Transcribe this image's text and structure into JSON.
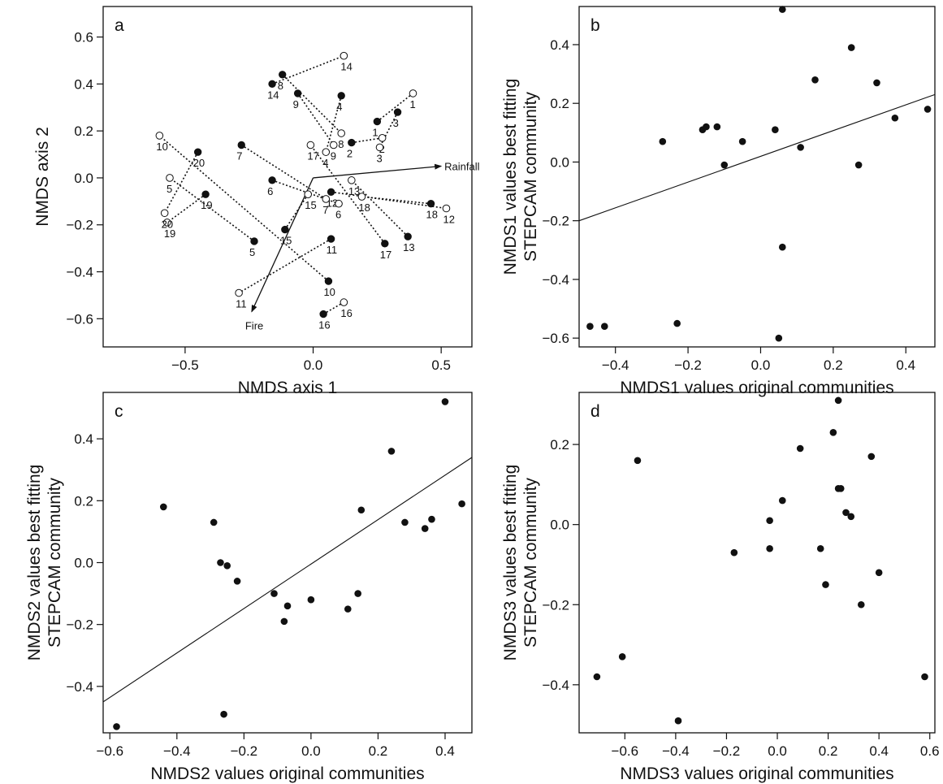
{
  "chart_data": [
    {
      "id": "a",
      "type": "scatter",
      "panel_label": "a",
      "xlabel": "NMDS axis 1",
      "ylabel": "NMDS axis 2",
      "xlim": [
        -0.82,
        0.62
      ],
      "ylim": [
        -0.72,
        0.73
      ],
      "xticks": [
        -0.5,
        0.0,
        0.5
      ],
      "xtick_labels": [
        "−0.5",
        "0.0",
        "0.5"
      ],
      "yticks": [
        -0.6,
        -0.4,
        -0.2,
        0.0,
        0.2,
        0.4,
        0.6
      ],
      "ytick_labels": [
        "−0.6",
        "−0.4",
        "−0.2",
        "0.0",
        "0.2",
        "0.4",
        "0.6"
      ],
      "grid": false,
      "series": [
        {
          "marker": "filled",
          "points": [
            {
              "label": "1",
              "x": 0.25,
              "y": 0.24
            },
            {
              "label": "2",
              "x": 0.15,
              "y": 0.15
            },
            {
              "label": "3",
              "x": 0.33,
              "y": 0.28
            },
            {
              "label": "4",
              "x": 0.11,
              "y": 0.35
            },
            {
              "label": "5",
              "x": -0.23,
              "y": -0.27
            },
            {
              "label": "6",
              "x": -0.16,
              "y": -0.01
            },
            {
              "label": "7",
              "x": -0.28,
              "y": 0.14
            },
            {
              "label": "8",
              "x": -0.12,
              "y": 0.44
            },
            {
              "label": "9",
              "x": -0.06,
              "y": 0.36
            },
            {
              "label": "10",
              "x": 0.06,
              "y": -0.44
            },
            {
              "label": "11",
              "x": 0.07,
              "y": -0.26
            },
            {
              "label": "12",
              "x": 0.07,
              "y": -0.06
            },
            {
              "label": "13",
              "x": 0.37,
              "y": -0.25
            },
            {
              "label": "14",
              "x": -0.16,
              "y": 0.4
            },
            {
              "label": "15",
              "x": -0.11,
              "y": -0.22
            },
            {
              "label": "16",
              "x": 0.04,
              "y": -0.58
            },
            {
              "label": "17",
              "x": 0.28,
              "y": -0.28
            },
            {
              "label": "18",
              "x": 0.46,
              "y": -0.11
            },
            {
              "label": "19",
              "x": -0.42,
              "y": -0.07
            },
            {
              "label": "20",
              "x": -0.45,
              "y": 0.11
            }
          ]
        },
        {
          "marker": "open",
          "points": [
            {
              "label": "1",
              "x": 0.39,
              "y": 0.36
            },
            {
              "label": "2",
              "x": 0.27,
              "y": 0.17
            },
            {
              "label": "3",
              "x": 0.26,
              "y": 0.13
            },
            {
              "label": "4",
              "x": 0.05,
              "y": 0.11
            },
            {
              "label": "5",
              "x": -0.56,
              "y": 0.0
            },
            {
              "label": "6",
              "x": 0.1,
              "y": -0.11
            },
            {
              "label": "7",
              "x": 0.05,
              "y": -0.09
            },
            {
              "label": "8",
              "x": 0.11,
              "y": 0.19
            },
            {
              "label": "9",
              "x": 0.08,
              "y": 0.14
            },
            {
              "label": "10",
              "x": -0.6,
              "y": 0.18
            },
            {
              "label": "11",
              "x": -0.29,
              "y": -0.49
            },
            {
              "label": "12",
              "x": 0.52,
              "y": -0.13
            },
            {
              "label": "13",
              "x": 0.15,
              "y": -0.01
            },
            {
              "label": "14",
              "x": 0.12,
              "y": 0.52
            },
            {
              "label": "15",
              "x": -0.02,
              "y": -0.07
            },
            {
              "label": "16",
              "x": 0.12,
              "y": -0.53
            },
            {
              "label": "17",
              "x": -0.01,
              "y": 0.14
            },
            {
              "label": "18",
              "x": 0.19,
              "y": -0.08
            },
            {
              "label": "19",
              "x": -0.57,
              "y": -0.19
            },
            {
              "label": "20",
              "x": -0.58,
              "y": -0.15
            }
          ]
        }
      ],
      "vectors": [
        {
          "label": "Rainfall",
          "x": 0.5,
          "y": 0.05
        },
        {
          "label": "Fire",
          "x": -0.24,
          "y": -0.57
        }
      ]
    },
    {
      "id": "b",
      "type": "scatter",
      "panel_label": "b",
      "xlabel": "NMDS1 values original communities",
      "ylabel": "NMDS1 values best fitting STEPCAM community",
      "xlim": [
        -0.5,
        0.48
      ],
      "ylim": [
        -0.63,
        0.53
      ],
      "xticks": [
        -0.4,
        -0.2,
        0.0,
        0.2,
        0.4
      ],
      "xtick_labels": [
        "−0.4",
        "−0.2",
        "0.0",
        "0.2",
        "0.4"
      ],
      "yticks": [
        -0.6,
        -0.4,
        -0.2,
        0.0,
        0.2,
        0.4
      ],
      "ytick_labels": [
        "−0.6",
        "−0.4",
        "−0.2",
        "0.0",
        "0.2",
        "0.4"
      ],
      "grid": false,
      "x": [
        -0.47,
        -0.43,
        -0.23,
        -0.27,
        -0.16,
        -0.15,
        -0.12,
        -0.1,
        -0.05,
        0.04,
        0.05,
        0.06,
        0.06,
        0.11,
        0.15,
        0.25,
        0.27,
        0.32,
        0.37,
        0.46
      ],
      "y": [
        -0.56,
        -0.56,
        -0.55,
        0.07,
        0.11,
        0.12,
        0.12,
        -0.01,
        0.07,
        0.11,
        -0.6,
        -0.29,
        0.52,
        0.05,
        0.28,
        0.39,
        -0.01,
        0.27,
        0.15,
        0.18
      ],
      "fit_line": {
        "x": [
          -0.5,
          0.48
        ],
        "y": [
          -0.2,
          0.23
        ]
      }
    },
    {
      "id": "c",
      "type": "scatter",
      "panel_label": "c",
      "xlabel": "NMDS2 values original communities",
      "ylabel": "NMDS2 values best fitting STEPCAM community",
      "xlim": [
        -0.62,
        0.48
      ],
      "ylim": [
        -0.55,
        0.55
      ],
      "xticks": [
        -0.6,
        -0.4,
        -0.2,
        0.0,
        0.2,
        0.4
      ],
      "xtick_labels": [
        "−0.6",
        "−0.4",
        "−0.2",
        "0.0",
        "0.2",
        "0.4"
      ],
      "yticks": [
        -0.4,
        -0.2,
        0.0,
        0.2,
        0.4
      ],
      "ytick_labels": [
        "−0.4",
        "−0.2",
        "0.0",
        "0.2",
        "0.4"
      ],
      "grid": false,
      "x": [
        -0.58,
        -0.44,
        -0.29,
        -0.27,
        -0.26,
        -0.25,
        -0.22,
        -0.11,
        -0.07,
        -0.08,
        0.0,
        0.11,
        0.14,
        0.15,
        0.24,
        0.28,
        0.34,
        0.36,
        0.4,
        0.45
      ],
      "y": [
        -0.53,
        0.18,
        0.13,
        0.0,
        -0.49,
        -0.01,
        -0.06,
        -0.1,
        -0.14,
        -0.19,
        -0.12,
        -0.15,
        -0.1,
        0.17,
        0.36,
        0.13,
        0.11,
        0.14,
        0.52,
        0.19
      ],
      "fit_line": {
        "x": [
          -0.62,
          0.48
        ],
        "y": [
          -0.45,
          0.34
        ]
      }
    },
    {
      "id": "d",
      "type": "scatter",
      "panel_label": "d",
      "xlabel": "NMDS3 values original communities",
      "ylabel": "NMDS3 values best fitting STEPCAM community",
      "xlim": [
        -0.78,
        0.62
      ],
      "ylim": [
        -0.52,
        0.33
      ],
      "xticks": [
        -0.6,
        -0.4,
        -0.2,
        0.0,
        0.2,
        0.4,
        0.6
      ],
      "xtick_labels": [
        "−0.6",
        "−0.4",
        "−0.2",
        "0.0",
        "0.2",
        "0.4",
        "0.6"
      ],
      "yticks": [
        -0.4,
        -0.2,
        0.0,
        0.2
      ],
      "ytick_labels": [
        "−0.4",
        "−0.2",
        "0.0",
        "0.2"
      ],
      "grid": false,
      "x": [
        -0.71,
        -0.61,
        -0.55,
        -0.39,
        -0.17,
        -0.03,
        -0.03,
        0.02,
        0.09,
        0.17,
        0.19,
        0.22,
        0.24,
        0.24,
        0.25,
        0.27,
        0.29,
        0.33,
        0.37,
        0.4,
        0.58
      ],
      "y": [
        -0.38,
        -0.33,
        0.16,
        -0.49,
        -0.07,
        -0.06,
        0.01,
        0.06,
        0.19,
        -0.06,
        -0.15,
        0.23,
        0.31,
        0.09,
        0.09,
        0.03,
        0.02,
        -0.2,
        0.17,
        -0.12,
        -0.38
      ]
    }
  ]
}
